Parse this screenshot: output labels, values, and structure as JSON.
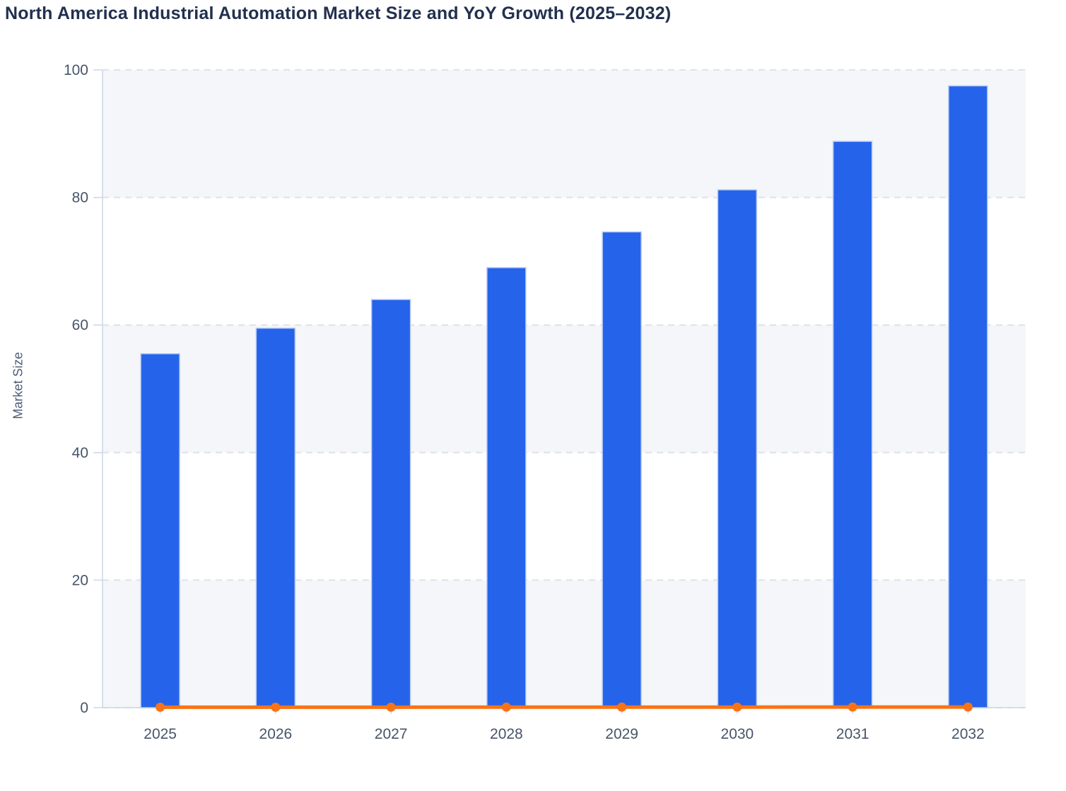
{
  "chart_data": {
    "type": "bar",
    "title": "North America Industrial Automation Market Size and YoY Growth (2025–2032)",
    "subtitle": "",
    "xlabel": "",
    "ylabel": "Market Size",
    "categories": [
      "2025",
      "2026",
      "2027",
      "2028",
      "2029",
      "2030",
      "2031",
      "2032"
    ],
    "series": [
      {
        "name": "Market Size",
        "type": "bar",
        "color": "#2563eb",
        "values": [
          55.5,
          59.5,
          64.0,
          69.0,
          74.6,
          81.2,
          88.8,
          97.5
        ]
      },
      {
        "name": "YoY Growth",
        "type": "line",
        "color": "#f97316",
        "values": [
          0.07,
          0.072,
          0.076,
          0.078,
          0.081,
          0.088,
          0.094,
          0.098
        ]
      }
    ],
    "ylim": [
      0,
      100
    ],
    "yticks": [
      0,
      20,
      40,
      60,
      80,
      100
    ],
    "grid": "horizontal-dashed",
    "legend_position": "none",
    "plot_bands_alternating": true,
    "colors": {
      "bar_fill": "#2563eb",
      "bar_edge": "#b9cbf2",
      "line": "#f97316",
      "band": "#f4f6f9",
      "gridline": "#dfe2e9",
      "axis_line": "#ccd6e8",
      "tick_label": "#475569",
      "title_text": "#22304f",
      "axis_title_text": "#4e5c77"
    }
  }
}
